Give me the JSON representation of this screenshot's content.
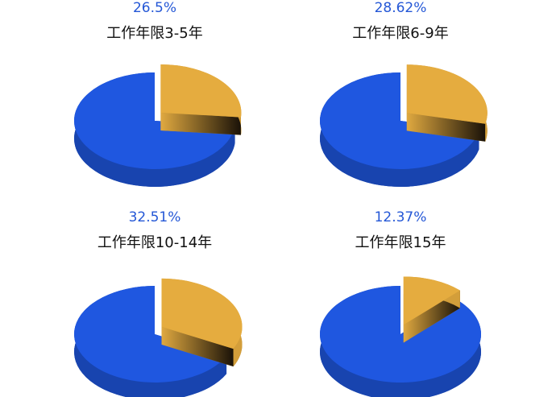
{
  "chart_data": [
    {
      "type": "pie",
      "title": "工作年限3-5年",
      "values": [
        26.5,
        73.5
      ],
      "value_labels": [
        "26.5%",
        null
      ],
      "colors": [
        "#e5ac3f",
        "#1f57e0"
      ]
    },
    {
      "type": "pie",
      "title": "工作年限6-9年",
      "values": [
        28.62,
        71.38
      ],
      "value_labels": [
        "28.62%",
        null
      ],
      "colors": [
        "#e5ac3f",
        "#1f57e0"
      ]
    },
    {
      "type": "pie",
      "title": "工作年限10-14年",
      "values": [
        32.51,
        67.49
      ],
      "value_labels": [
        "32.51%",
        null
      ],
      "colors": [
        "#e5ac3f",
        "#1f57e0"
      ]
    },
    {
      "type": "pie",
      "title": "工作年限15年",
      "values": [
        12.37,
        87.63
      ],
      "value_labels": [
        "12.37%",
        null
      ],
      "colors": [
        "#e5ac3f",
        "#1f57e0"
      ]
    }
  ]
}
